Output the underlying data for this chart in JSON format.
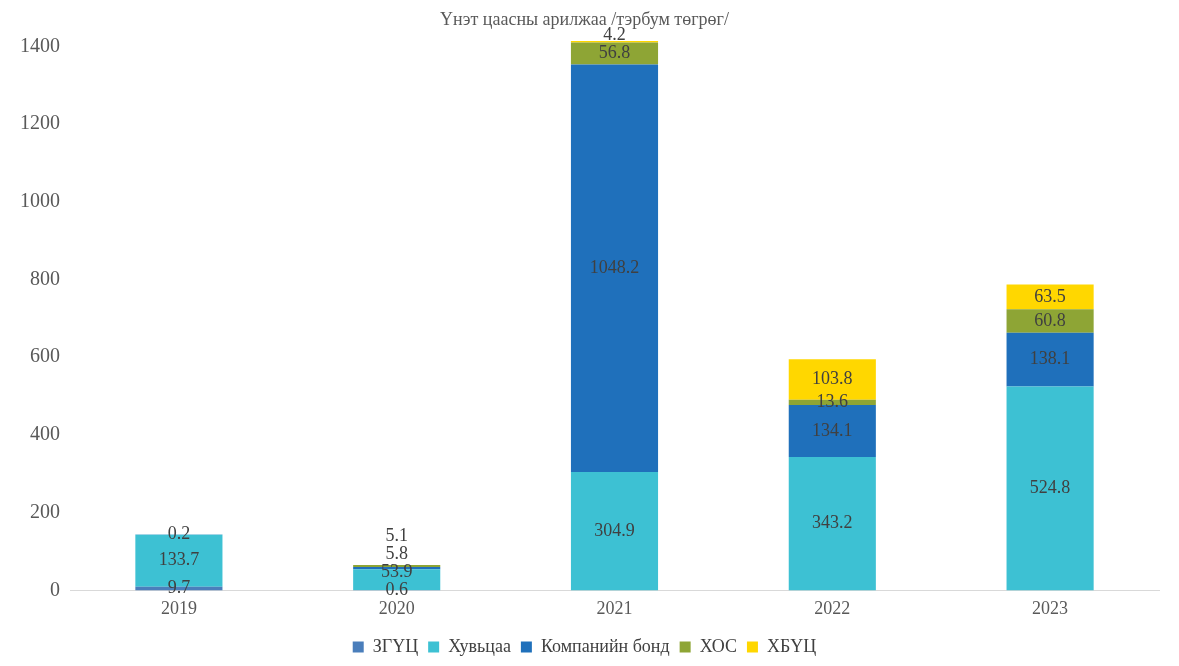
{
  "chart_data": {
    "type": "bar",
    "title": "Үнэт цаасны арилжаа /тэрбум төгрөг/",
    "categories": [
      "2019",
      "2020",
      "2021",
      "2022",
      "2023"
    ],
    "stacked": true,
    "series": [
      {
        "name": "ЗГҮЦ",
        "color": "#4a7ebb",
        "values": [
          9.7,
          0.6,
          null,
          null,
          null
        ]
      },
      {
        "name": "Хувьцаа",
        "color": "#3dc1d3",
        "values": [
          133.7,
          53.9,
          304.9,
          343.2,
          524.8
        ]
      },
      {
        "name": "Компанийн бонд",
        "color": "#1f70bb",
        "values": [
          0.2,
          5.8,
          1048.2,
          134.1,
          138.1
        ]
      },
      {
        "name": "ХОС",
        "color": "#8ea535",
        "values": [
          null,
          5.1,
          56.8,
          13.6,
          60.8
        ]
      },
      {
        "name": "ХБҮЦ",
        "color": "#ffd700",
        "values": [
          null,
          null,
          4.2,
          103.8,
          63.5
        ]
      }
    ],
    "ylim": [
      0,
      1420
    ],
    "yticks": [
      0,
      200,
      400,
      600,
      800,
      1000,
      1200,
      1400
    ],
    "grid": false,
    "legend": "bottom",
    "data_labels": true
  }
}
